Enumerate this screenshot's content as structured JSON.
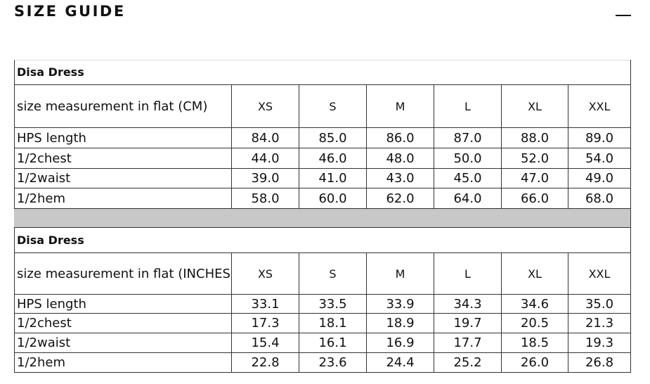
{
  "header": {
    "title": "SIZE GUIDE"
  },
  "tables": [
    {
      "title": "Disa Dress",
      "columns": [
        "size measurement in flat (CM)",
        "XS",
        "S",
        "M",
        "L",
        "XL",
        "XXL"
      ],
      "rows": [
        [
          "HPS length",
          "84.0",
          "85.0",
          "86.0",
          "87.0",
          "88.0",
          "89.0"
        ],
        [
          "1/2chest",
          "44.0",
          "46.0",
          "48.0",
          "50.0",
          "52.0",
          "54.0"
        ],
        [
          "1/2waist",
          "39.0",
          "41.0",
          "43.0",
          "45.0",
          "47.0",
          "49.0"
        ],
        [
          "1/2hem",
          "58.0",
          "60.0",
          "62.0",
          "64.0",
          "66.0",
          "68.0"
        ]
      ]
    },
    {
      "title": "Disa Dress",
      "columns": [
        "size measurement in flat (INCHES)",
        "XS",
        "S",
        "M",
        "L",
        "XL",
        "XXL"
      ],
      "rows": [
        [
          "HPS length",
          "33.1",
          "33.5",
          "33.9",
          "34.3",
          "34.6",
          "35.0"
        ],
        [
          "1/2chest",
          "17.3",
          "18.1",
          "18.9",
          "19.7",
          "20.5",
          "21.3"
        ],
        [
          "1/2waist",
          "15.4",
          "16.1",
          "16.9",
          "17.7",
          "18.5",
          "19.3"
        ],
        [
          "1/2hem",
          "22.8",
          "23.6",
          "24.4",
          "25.2",
          "26.0",
          "26.8"
        ]
      ]
    }
  ]
}
